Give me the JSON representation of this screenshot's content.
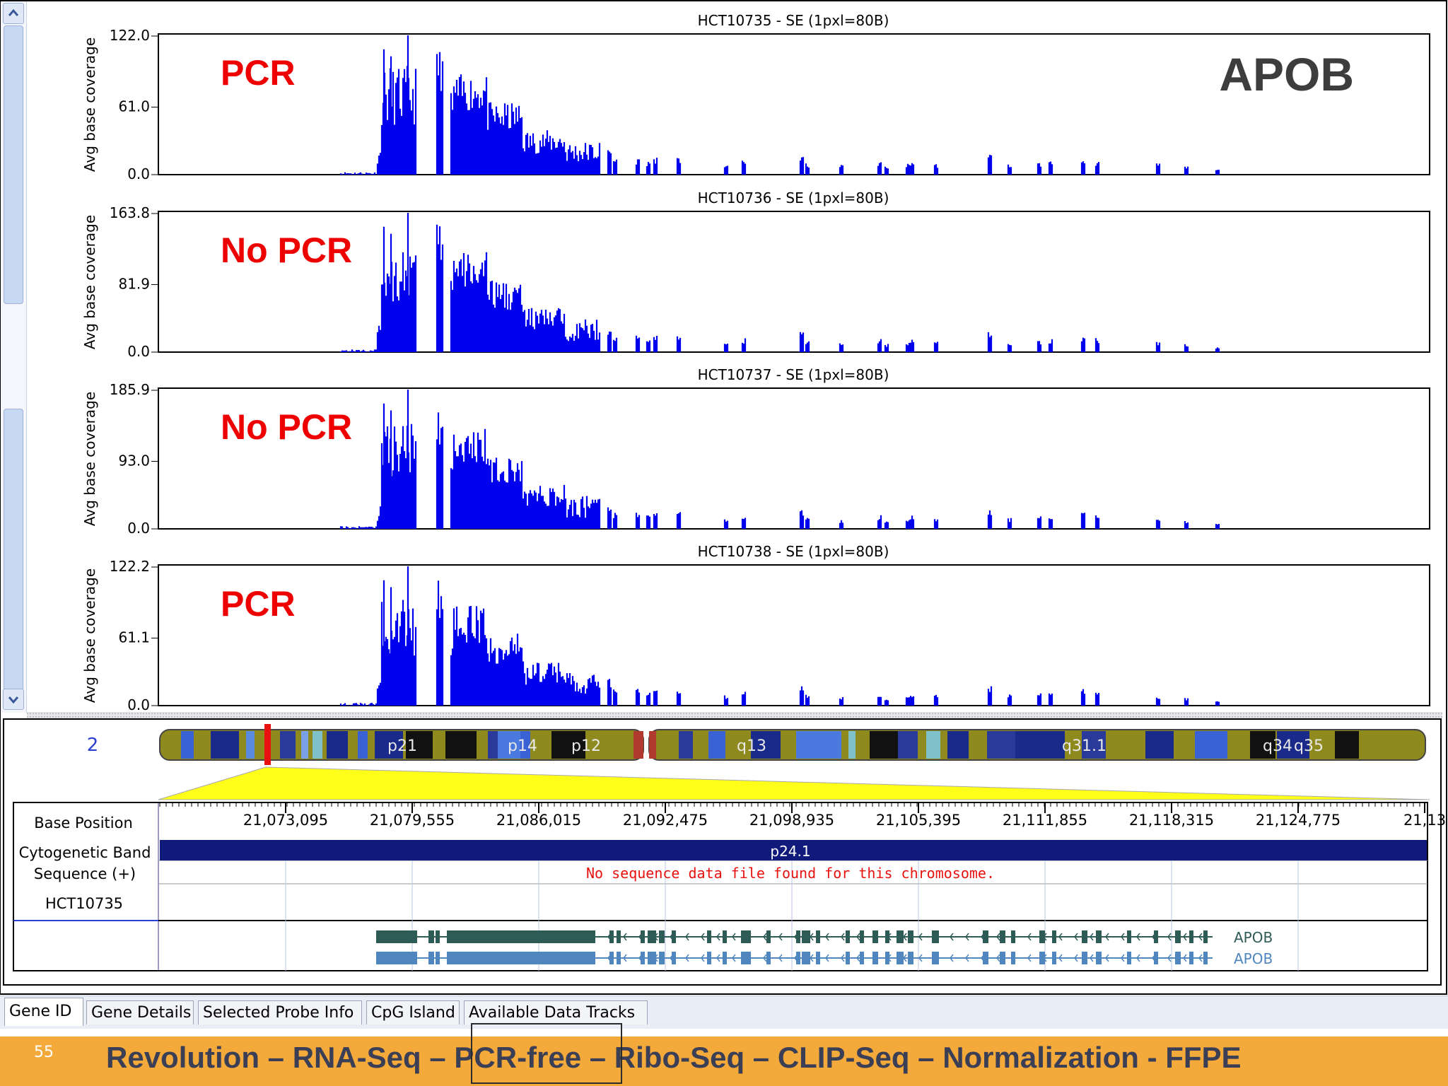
{
  "panels": [
    {
      "title": "HCT10735 - SE  (1pxl=80B)",
      "ylabel": "Avg base coverage",
      "ticks": [
        "122.0",
        "61.0",
        "0.0"
      ],
      "label": "PCR",
      "gene_label": "APOB"
    },
    {
      "title": "HCT10736 - SE  (1pxl=80B)",
      "ylabel": "Avg base coverage",
      "ticks": [
        "163.8",
        "81.9",
        "0.0"
      ],
      "label": "No PCR",
      "gene_label": ""
    },
    {
      "title": "HCT10737 - SE  (1pxl=80B)",
      "ylabel": "Avg base coverage",
      "ticks": [
        "185.9",
        "93.0",
        "0.0"
      ],
      "label": "No PCR",
      "gene_label": ""
    },
    {
      "title": "HCT10738 - SE  (1pxl=80B)",
      "ylabel": "Avg base coverage",
      "ticks": [
        "122.2",
        "61.1",
        "0.0"
      ],
      "label": "PCR",
      "gene_label": ""
    }
  ],
  "chromosome": {
    "number": "2",
    "bands": [
      "p21",
      "p14",
      "p12",
      "q13",
      "q31.1",
      "q34",
      "q35"
    ]
  },
  "track_labels": {
    "base_position": "Base Position",
    "cytogenetic_band": "Cytogenetic Band",
    "sequence": "Sequence (+)",
    "sample": "HCT10735"
  },
  "base_positions": [
    "21,073,095",
    "21,079,555",
    "21,086,015",
    "21,092,475",
    "21,098,935",
    "21,105,395",
    "21,111,855",
    "21,118,315",
    "21,124,775",
    "21,13"
  ],
  "cytoband": "p24.1",
  "sequence_message": "No sequence data file found for this chromosome.",
  "genes": [
    "APOB",
    "APOB"
  ],
  "colors": {
    "coverage": "#0000ee",
    "label_red": "#ee0000",
    "cytoband_bar": "#101a7a",
    "transcript1": "#2f5b56",
    "transcript2": "#4f86be",
    "footer": "#f4a93b"
  },
  "tabs": [
    "Gene ID",
    "Gene Details",
    "Selected Probe Info",
    "CpG Island",
    "Available Data Tracks"
  ],
  "footer": {
    "slide_number": "55",
    "caption": "Revolution – RNA-Seq – PCR-free – Ribo-Seq – CLIP-Seq – Normalization - FFPE"
  }
}
